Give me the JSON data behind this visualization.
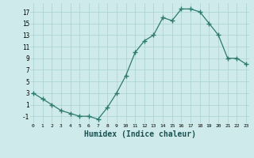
{
  "x": [
    0,
    1,
    2,
    3,
    4,
    5,
    6,
    7,
    8,
    9,
    10,
    11,
    12,
    13,
    14,
    15,
    16,
    17,
    18,
    19,
    20,
    21,
    22,
    23
  ],
  "y": [
    3,
    2,
    1,
    0,
    -0.5,
    -1,
    -1,
    -1.5,
    0.5,
    3,
    6,
    10,
    12,
    13,
    16,
    15.5,
    17.5,
    17.5,
    17,
    15,
    13,
    9,
    9,
    8
  ],
  "line_color": "#2d7a6e",
  "marker": "+",
  "bg_color": "#ceeaea",
  "grid_color": "#aacfcf",
  "xlabel": "Humidex (Indice chaleur)",
  "xlabel_fontsize": 7,
  "yticks": [
    -1,
    1,
    3,
    5,
    7,
    9,
    11,
    13,
    15,
    17
  ],
  "ylim": [
    -2.2,
    18.5
  ],
  "xlim": [
    -0.3,
    23.3
  ]
}
